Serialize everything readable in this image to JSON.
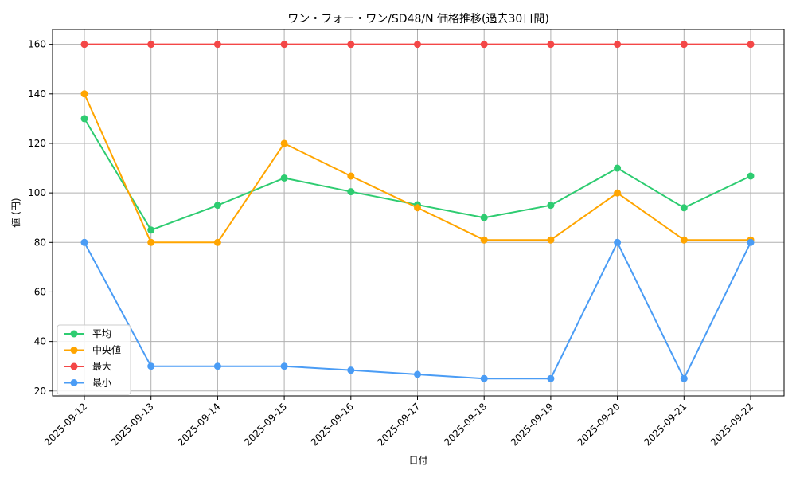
{
  "chart_data": {
    "type": "line",
    "title": "ワン・フォー・ワン/SD48/N 価格推移(過去30日間)",
    "xlabel": "日付",
    "ylabel": "値 (円)",
    "categories": [
      "2025-09-12",
      "2025-09-13",
      "2025-09-14",
      "2025-09-15",
      "2025-09-16",
      "2025-09-17",
      "2025-09-18",
      "2025-09-19",
      "2025-09-20",
      "2025-09-21",
      "2025-09-22"
    ],
    "ylim": [
      18,
      166
    ],
    "yticks": [
      20,
      40,
      60,
      80,
      100,
      120,
      140,
      160
    ],
    "grid": true,
    "legend_position": "lower-left",
    "series": [
      {
        "name": "平均",
        "color": "#2ecc71",
        "values": [
          130,
          85,
          95,
          106,
          100.5,
          95.2,
          90,
          95,
          110,
          94,
          106.8
        ]
      },
      {
        "name": "中央値",
        "color": "#ffa500",
        "values": [
          140,
          80,
          80,
          120,
          106.8,
          94,
          81,
          81,
          100,
          81,
          81
        ]
      },
      {
        "name": "最大",
        "color": "#f44747",
        "values": [
          160,
          160,
          160,
          160,
          160,
          160,
          160,
          160,
          160,
          160,
          160
        ]
      },
      {
        "name": "最小",
        "color": "#4a9cf5",
        "values": [
          80,
          30,
          30,
          30,
          28.4,
          26.7,
          25,
          25,
          80,
          25,
          80
        ]
      }
    ]
  }
}
